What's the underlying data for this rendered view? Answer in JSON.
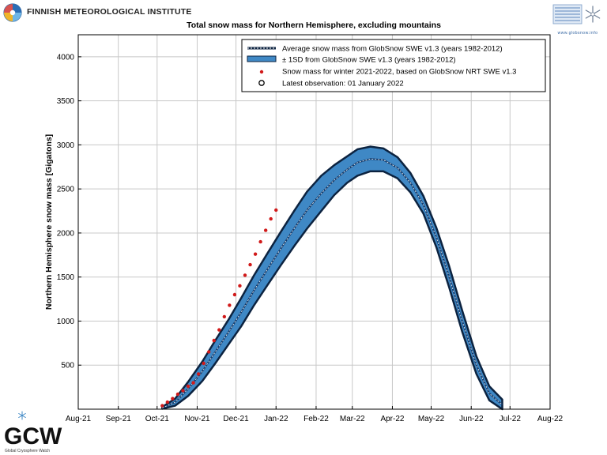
{
  "header": {
    "institute_name": "FINNISH METEOROLOGICAL INSTITUTE",
    "globsnow_url": "www.globsnow.info"
  },
  "footer": {
    "gcw_logo_text": "GCW",
    "gcw_caption": "Global Cryosphere Watch"
  },
  "colors": {
    "band_fill": "#3f88c5",
    "band_edge": "#0c2340",
    "mean_line": "#123a6b",
    "observation_points": "#d11a1a",
    "grid": "#c8c8c8"
  },
  "chart_data": {
    "type": "line",
    "title": "Total snow mass for Northern Hemisphere, excluding mountains",
    "ylabel": "Northern Hemisphere snow mass [Gigatons]",
    "xlabel": "",
    "x_ticks": [
      "Aug-21",
      "Sep-21",
      "Oct-21",
      "Nov-21",
      "Dec-21",
      "Jan-22",
      "Feb-22",
      "Mar-22",
      "Apr-22",
      "May-22",
      "Jun-22",
      "Jul-22",
      "Aug-22"
    ],
    "x_tick_dates": [
      "2021-08-01",
      "2021-09-01",
      "2021-10-01",
      "2021-11-01",
      "2021-12-01",
      "2022-01-01",
      "2022-02-01",
      "2022-03-01",
      "2022-04-01",
      "2022-05-01",
      "2022-06-01",
      "2022-07-01",
      "2022-08-01"
    ],
    "xlim": [
      "2021-08-01",
      "2022-08-01"
    ],
    "y_ticks": [
      500,
      1000,
      1500,
      2000,
      2500,
      3000,
      3500,
      4000
    ],
    "ylim": [
      0,
      4250
    ],
    "grid": true,
    "legend_position": "top-right",
    "legend": [
      "Average snow mass from GlobSnow SWE v1.3 (years 1982-2012)",
      "± 1SD from GlobSnow SWE v1.3 (years 1982-2012)",
      "Snow mass for winter 2021-2022, based on GlobSnow NRT SWE v1.3",
      "Latest observation: 01 January 2022"
    ],
    "series": [
      {
        "kind": "mean",
        "dates": [
          "2021-10-05",
          "2021-10-15",
          "2021-10-25",
          "2021-11-05",
          "2021-11-15",
          "2021-11-25",
          "2021-12-05",
          "2021-12-15",
          "2021-12-25",
          "2022-01-05",
          "2022-01-15",
          "2022-01-25",
          "2022-02-05",
          "2022-02-15",
          "2022-02-25",
          "2022-03-05",
          "2022-03-15",
          "2022-03-25",
          "2022-04-05",
          "2022-04-15",
          "2022-04-25",
          "2022-05-05",
          "2022-05-15",
          "2022-05-25",
          "2022-06-05",
          "2022-06-15",
          "2022-06-25"
        ],
        "values": [
          15,
          80,
          230,
          430,
          650,
          870,
          1100,
          1350,
          1580,
          1830,
          2050,
          2260,
          2450,
          2600,
          2720,
          2800,
          2840,
          2830,
          2740,
          2570,
          2320,
          1950,
          1500,
          1000,
          500,
          180,
          50
        ]
      },
      {
        "kind": "upper_sd",
        "dates": [
          "2021-10-05",
          "2021-10-15",
          "2021-10-25",
          "2021-11-05",
          "2021-11-15",
          "2021-11-25",
          "2021-12-05",
          "2021-12-15",
          "2021-12-25",
          "2022-01-05",
          "2022-01-15",
          "2022-01-25",
          "2022-02-05",
          "2022-02-15",
          "2022-02-25",
          "2022-03-05",
          "2022-03-15",
          "2022-03-25",
          "2022-04-05",
          "2022-04-15",
          "2022-04-25",
          "2022-05-05",
          "2022-05-15",
          "2022-05-25",
          "2022-06-05",
          "2022-06-15",
          "2022-06-25"
        ],
        "values": [
          25,
          120,
          310,
          540,
          780,
          1010,
          1260,
          1520,
          1760,
          2020,
          2250,
          2470,
          2650,
          2770,
          2870,
          2950,
          2980,
          2960,
          2860,
          2680,
          2420,
          2060,
          1620,
          1120,
          600,
          260,
          110
        ]
      },
      {
        "kind": "lower_sd",
        "dates": [
          "2021-10-05",
          "2021-10-15",
          "2021-10-25",
          "2021-11-05",
          "2021-11-15",
          "2021-11-25",
          "2021-12-05",
          "2021-12-15",
          "2021-12-25",
          "2022-01-05",
          "2022-01-15",
          "2022-01-25",
          "2022-02-05",
          "2022-02-15",
          "2022-02-25",
          "2022-03-05",
          "2022-03-15",
          "2022-03-25",
          "2022-04-05",
          "2022-04-15",
          "2022-04-25",
          "2022-05-05",
          "2022-05-15",
          "2022-05-25",
          "2022-06-05",
          "2022-06-15",
          "2022-06-25"
        ],
        "values": [
          5,
          40,
          150,
          320,
          520,
          730,
          940,
          1180,
          1400,
          1640,
          1850,
          2050,
          2250,
          2430,
          2570,
          2650,
          2700,
          2700,
          2620,
          2460,
          2220,
          1840,
          1380,
          880,
          400,
          100,
          0
        ]
      },
      {
        "kind": "observations",
        "dates": [
          "2021-10-05",
          "2021-10-09",
          "2021-10-13",
          "2021-10-17",
          "2021-10-21",
          "2021-10-25",
          "2021-10-29",
          "2021-11-02",
          "2021-11-06",
          "2021-11-10",
          "2021-11-14",
          "2021-11-18",
          "2021-11-22",
          "2021-11-26",
          "2021-11-30",
          "2021-12-04",
          "2021-12-08",
          "2021-12-12",
          "2021-12-16",
          "2021-12-20",
          "2021-12-24",
          "2021-12-28",
          "2022-01-01"
        ],
        "values": [
          40,
          80,
          120,
          170,
          210,
          260,
          300,
          400,
          520,
          650,
          780,
          900,
          1050,
          1180,
          1300,
          1400,
          1520,
          1640,
          1760,
          1900,
          2030,
          2160,
          2260
        ]
      }
    ]
  }
}
